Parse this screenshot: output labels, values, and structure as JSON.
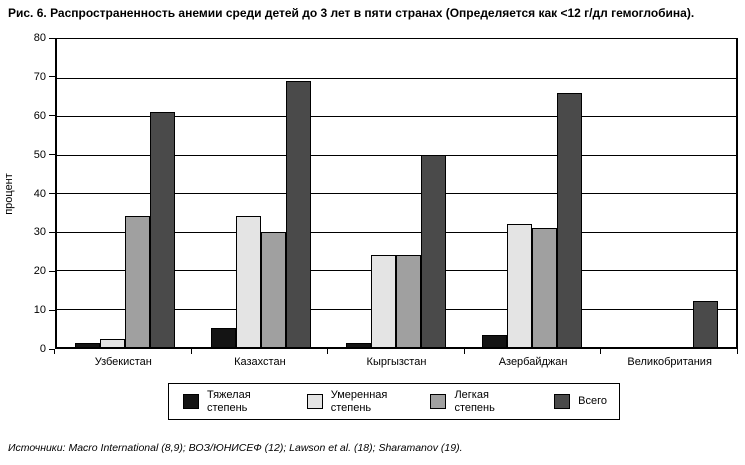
{
  "title": "Рис. 6. Распространенность анемии среди детей до 3 лет в пяти странах (Определяется как <12 г/дл гемоглобина).",
  "source": "Источники: Macro International (8,9); ВОЗ/ЮНИСЕФ (12); Lawson et al. (18); Sharamanov (19).",
  "chart_data": {
    "type": "bar",
    "title": "Рис. 6. Распространенность анемии среди детей до 3 лет в пяти странах (Определяется как <12 г/дл гемоглобина).",
    "categories": [
      "Узбекистан",
      "Казахстан",
      "Кыргызстан",
      "Азербайджан",
      "Великобритания"
    ],
    "series": [
      {
        "name": "Тяжелая степень",
        "color": "#141414",
        "values": [
          1,
          5,
          1,
          3,
          0
        ]
      },
      {
        "name": "Умеренная степень",
        "color": "#e4e4e4",
        "values": [
          2,
          34,
          24,
          32,
          0
        ]
      },
      {
        "name": "Легкая степень",
        "color": "#a0a0a0",
        "values": [
          34,
          30,
          24,
          31,
          0
        ]
      },
      {
        "name": "Всего",
        "color": "#4a4a4a",
        "values": [
          61,
          69,
          50,
          66,
          12
        ]
      }
    ],
    "xlabel": "",
    "ylabel": "процент",
    "ylim": [
      0,
      80
    ],
    "ytick_step": 10,
    "grid": true,
    "legend_position": "bottom"
  }
}
